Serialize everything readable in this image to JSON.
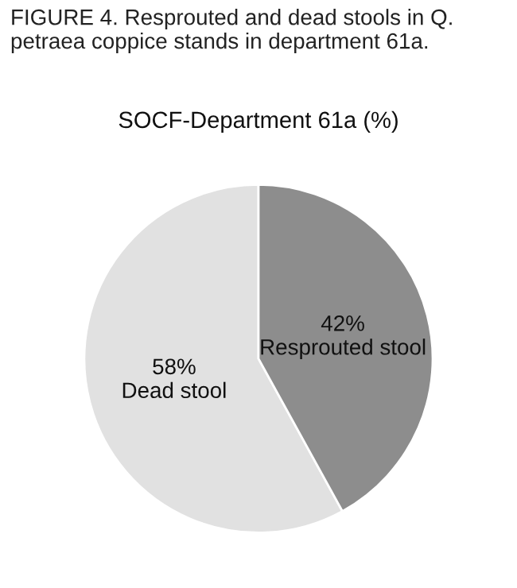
{
  "chart_data": {
    "type": "pie",
    "title": "SOCF-Department 61a (%)",
    "annotations": [
      "FIGURE 4. Resprouted and dead stools in Q. petraea coppice stands in department 61a."
    ],
    "categories": [
      "Dead stool",
      "Resprouted stool"
    ],
    "values": [
      58,
      42
    ],
    "value_labels": [
      "58%",
      "42%"
    ],
    "colors": [
      "#e1e1e1",
      "#8d8d8d"
    ],
    "legend": false
  }
}
